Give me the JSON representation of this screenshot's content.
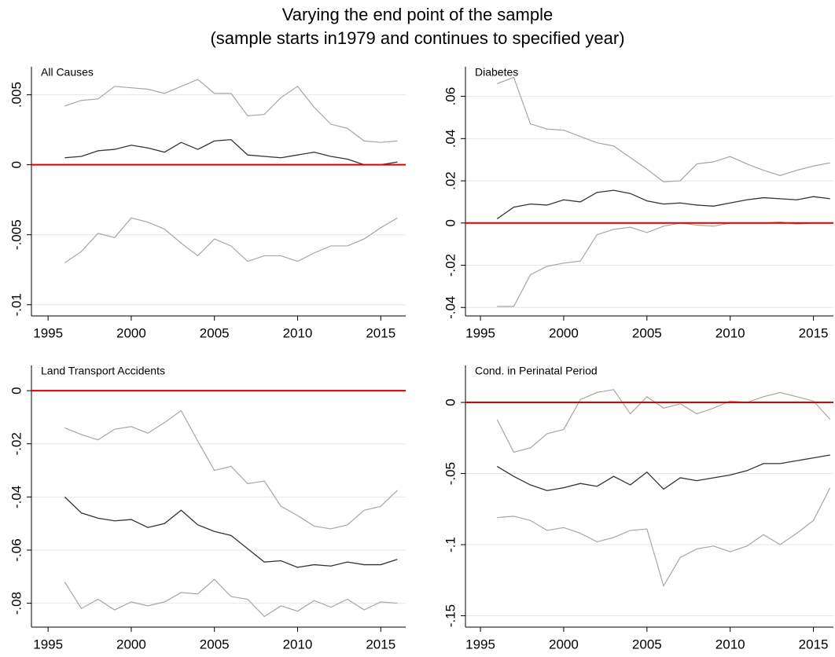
{
  "title": "Varying the end point of the sample",
  "subtitle": "(sample starts in1979 and continues to specified year)",
  "chart_data": [
    {
      "type": "line",
      "title": "All Causes",
      "x": [
        1996,
        1997,
        1998,
        1999,
        2000,
        2001,
        2002,
        2003,
        2004,
        2005,
        2006,
        2007,
        2008,
        2009,
        2010,
        2011,
        2012,
        2013,
        2014,
        2015,
        2016
      ],
      "series": [
        {
          "color": "#a6a6a6",
          "values": [
            0.0042,
            0.0046,
            0.0047,
            0.0056,
            0.0055,
            0.0054,
            0.0051,
            0.0056,
            0.0061,
            0.0051,
            0.0051,
            0.0035,
            0.0036,
            0.0048,
            0.0056,
            0.0041,
            0.0029,
            0.0026,
            0.0017,
            0.0016,
            0.0017
          ]
        },
        {
          "color": "#333333",
          "values": [
            0.0005,
            0.0006,
            0.001,
            0.0011,
            0.0014,
            0.0012,
            0.0009,
            0.0016,
            0.0011,
            0.0017,
            0.0018,
            0.0007,
            0.0006,
            0.0005,
            0.0007,
            0.0009,
            0.0006,
            0.0004,
            0,
            0,
            0.0002
          ]
        },
        {
          "color": "#a6a6a6",
          "values": [
            -0.007,
            -0.0062,
            -0.0049,
            -0.0052,
            -0.0038,
            -0.0041,
            -0.0046,
            -0.0056,
            -0.0065,
            -0.0053,
            -0.0058,
            -0.0069,
            -0.0065,
            -0.0065,
            -0.0069,
            -0.0063,
            -0.0058,
            -0.0058,
            -0.0053,
            -0.0045,
            -0.0038
          ]
        }
      ],
      "reference_line": {
        "value": 0,
        "color": "#e00000"
      },
      "xlim": [
        1994,
        2016.5
      ],
      "xticks": [
        1995,
        2000,
        2005,
        2010,
        2015
      ],
      "ylim": [
        -0.0108,
        0.007
      ],
      "yticks": [
        {
          "value": -0.01,
          "label": "-.01"
        },
        {
          "value": -0.005,
          "label": "-.005"
        },
        0,
        {
          "value": 0.005,
          "label": ".005"
        }
      ],
      "grid": true
    },
    {
      "type": "line",
      "title": "Diabetes",
      "x": [
        1996,
        1997,
        1998,
        1999,
        2000,
        2001,
        2002,
        2003,
        2004,
        2005,
        2006,
        2007,
        2008,
        2009,
        2010,
        2011,
        2012,
        2013,
        2014,
        2015,
        2016
      ],
      "series": [
        {
          "color": "#a6a6a6",
          "values": [
            0.066,
            0.069,
            0.047,
            0.0445,
            0.044,
            0.041,
            0.038,
            0.0365,
            0.031,
            0.0255,
            0.0195,
            0.02,
            0.028,
            0.029,
            0.0315,
            0.028,
            0.025,
            0.0225,
            0.025,
            0.027,
            0.0285
          ]
        },
        {
          "color": "#333333",
          "values": [
            0.002,
            0.0075,
            0.009,
            0.0085,
            0.011,
            0.01,
            0.0145,
            0.0155,
            0.014,
            0.0105,
            0.009,
            0.0095,
            0.0085,
            0.008,
            0.0095,
            0.011,
            0.012,
            0.0115,
            0.011,
            0.0125,
            0.0115
          ]
        },
        {
          "color": "#a6a6a6",
          "values": [
            -0.0395,
            -0.0395,
            -0.0245,
            -0.0205,
            -0.019,
            -0.018,
            -0.0055,
            -0.003,
            -0.002,
            -0.0045,
            -0.0015,
            0,
            -0.001,
            -0.0015,
            0,
            0,
            0,
            0.0005,
            -0.0005,
            0,
            0
          ]
        }
      ],
      "reference_line": {
        "value": 0,
        "color": "#e00000"
      },
      "xlim": [
        1994.1,
        2016.2
      ],
      "xticks": [
        1995,
        2000,
        2005,
        2010,
        2015
      ],
      "ylim": [
        -0.044,
        0.074
      ],
      "yticks": [
        {
          "value": -0.04,
          "label": "-.04"
        },
        {
          "value": -0.02,
          "label": "-.02"
        },
        0,
        {
          "value": 0.02,
          "label": ".02"
        },
        {
          "value": 0.04,
          "label": ".04"
        },
        {
          "value": 0.06,
          "label": ".06"
        }
      ],
      "grid": true
    },
    {
      "type": "line",
      "title": "Land Transport Accidents",
      "x": [
        1996,
        1997,
        1998,
        1999,
        2000,
        2001,
        2002,
        2003,
        2004,
        2005,
        2006,
        2007,
        2008,
        2009,
        2010,
        2011,
        2012,
        2013,
        2014,
        2015,
        2016
      ],
      "series": [
        {
          "color": "#a6a6a6",
          "values": [
            -0.014,
            -0.0165,
            -0.0185,
            -0.0145,
            -0.0135,
            -0.016,
            -0.012,
            -0.0075,
            -0.019,
            -0.03,
            -0.0285,
            -0.035,
            -0.034,
            -0.0435,
            -0.047,
            -0.051,
            -0.052,
            -0.0505,
            -0.045,
            -0.0435,
            -0.0375
          ]
        },
        {
          "color": "#333333",
          "values": [
            -0.04,
            -0.046,
            -0.048,
            -0.049,
            -0.0485,
            -0.0515,
            -0.05,
            -0.045,
            -0.0505,
            -0.053,
            -0.0545,
            -0.0595,
            -0.0645,
            -0.064,
            -0.0665,
            -0.0655,
            -0.066,
            -0.0645,
            -0.0655,
            -0.0655,
            -0.0635
          ]
        },
        {
          "color": "#a6a6a6",
          "values": [
            -0.072,
            -0.082,
            -0.0785,
            -0.0825,
            -0.0795,
            -0.081,
            -0.0795,
            -0.076,
            -0.0765,
            -0.071,
            -0.0775,
            -0.0785,
            -0.085,
            -0.081,
            -0.083,
            -0.079,
            -0.0815,
            -0.0785,
            -0.0825,
            -0.0795,
            -0.08
          ]
        }
      ],
      "reference_line": {
        "value": 0,
        "color": "#e00000"
      },
      "xlim": [
        1994,
        2016.5
      ],
      "xticks": [
        1995,
        2000,
        2005,
        2010,
        2015
      ],
      "ylim": [
        -0.089,
        0.0095
      ],
      "yticks": [
        {
          "value": -0.08,
          "label": "-.08"
        },
        {
          "value": -0.06,
          "label": "-.06"
        },
        {
          "value": -0.04,
          "label": "-.04"
        },
        {
          "value": -0.02,
          "label": "-.02"
        },
        0
      ],
      "grid": true
    },
    {
      "type": "line",
      "title": "Cond. in Perinatal Period",
      "x": [
        1996,
        1997,
        1998,
        1999,
        2000,
        2001,
        2002,
        2003,
        2004,
        2005,
        2006,
        2007,
        2008,
        2009,
        2010,
        2011,
        2012,
        2013,
        2014,
        2015,
        2016
      ],
      "series": [
        {
          "color": "#a6a6a6",
          "values": [
            -0.012,
            -0.035,
            -0.032,
            -0.022,
            -0.019,
            0.002,
            0.007,
            0.009,
            -0.008,
            0.004,
            -0.004,
            -0.001,
            -0.008,
            -0.004,
            0.001,
            0,
            0.004,
            0.007,
            0.004,
            0.001,
            -0.012
          ]
        },
        {
          "color": "#333333",
          "values": [
            -0.045,
            -0.052,
            -0.058,
            -0.062,
            -0.06,
            -0.057,
            -0.059,
            -0.052,
            -0.058,
            -0.049,
            -0.061,
            -0.053,
            -0.055,
            -0.053,
            -0.051,
            -0.048,
            -0.043,
            -0.043,
            -0.041,
            -0.039,
            -0.037
          ]
        },
        {
          "color": "#a6a6a6",
          "values": [
            -0.081,
            -0.08,
            -0.083,
            -0.09,
            -0.088,
            -0.092,
            -0.098,
            -0.095,
            -0.09,
            -0.089,
            -0.129,
            -0.109,
            -0.103,
            -0.101,
            -0.105,
            -0.101,
            -0.093,
            -0.1,
            -0.092,
            -0.083,
            -0.06
          ]
        }
      ],
      "reference_line": {
        "value": 0,
        "color": "#e00000"
      },
      "xlim": [
        1994.1,
        2016.2
      ],
      "xticks": [
        1995,
        2000,
        2005,
        2010,
        2015
      ],
      "ylim": [
        -0.158,
        0.026
      ],
      "yticks": [
        {
          "value": -0.15,
          "label": "-.15"
        },
        {
          "value": -0.1,
          "label": "-.1"
        },
        {
          "value": -0.05,
          "label": "-.05"
        },
        0
      ],
      "grid": true
    }
  ]
}
